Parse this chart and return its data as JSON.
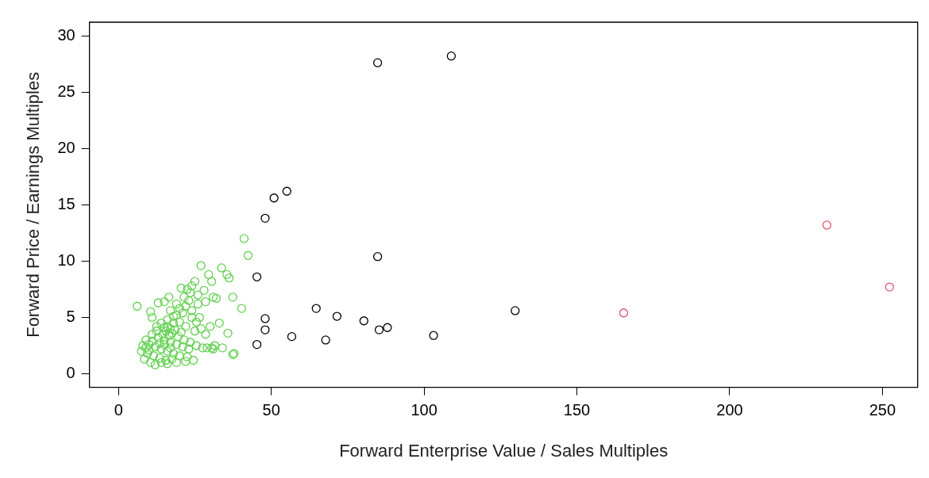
{
  "chart_data": {
    "type": "scatter",
    "xlabel": "Forward Enterprise Value / Sales Multiples",
    "ylabel": "Forward Price / Earnings Multiples",
    "xlim": [
      -9.5,
      261.5
    ],
    "ylim": [
      -1.2,
      31.2
    ],
    "xticks": [
      0,
      50,
      100,
      150,
      200,
      250
    ],
    "yticks": [
      0,
      5,
      10,
      15,
      20,
      25,
      30
    ],
    "grid": false,
    "legend": false,
    "marker": "circle",
    "series": [
      {
        "color": "#000000",
        "x": [
          84.8,
          108.9,
          55.1,
          50.9,
          48.0,
          84.8,
          45.3,
          64.7,
          71.5,
          80.3,
          48.0,
          48.0,
          56.7,
          67.8,
          85.3,
          88.0,
          45.3,
          103.1,
          129.8
        ],
        "values": [
          27.6,
          28.2,
          16.2,
          15.6,
          13.8,
          10.4,
          8.6,
          5.8,
          5.1,
          4.7,
          4.9,
          3.9,
          3.3,
          3.0,
          3.9,
          4.1,
          2.6,
          3.4,
          5.6
        ]
      },
      {
        "color": "#df536b",
        "x": [
          165.3,
          231.8,
          252.3
        ],
        "values": [
          5.4,
          13.2,
          7.7
        ]
      },
      {
        "color": "#61d04f",
        "x": [
          6.1,
          41.1,
          42.4,
          37.4,
          40.3,
          35.8,
          37.4,
          37.8,
          31.0,
          31.5,
          30.5,
          29.0,
          33.0,
          30.0,
          27.0,
          33.7,
          35.5,
          36.2,
          29.5,
          30.5,
          25.0,
          24.0,
          22.5,
          20.5,
          26.0,
          28.0,
          31.0,
          32.0,
          28.5,
          23.0,
          16.5,
          15.0,
          13.0,
          10.5,
          11.0,
          17.0,
          19.0,
          21.0,
          24.0,
          26.5,
          27.0,
          25.0,
          22.0,
          20.0,
          18.0,
          16.0,
          14.0,
          12.5,
          15.5,
          17.5,
          19.5,
          21.5,
          23.5,
          25.5,
          27.5,
          11.0,
          13.0,
          15.0,
          17.0,
          19.0,
          21.0,
          23.0,
          9.0,
          10.0,
          12.0,
          14.0,
          16.0,
          18.0,
          20.0,
          22.5,
          8.0,
          7.5,
          9.5,
          11.5,
          13.5,
          15.5,
          17.5,
          8.5,
          10.5,
          12.0,
          14.0,
          16.0,
          24.5,
          22.0,
          19.0,
          12.5,
          14.5,
          16.5,
          18.5,
          20.5,
          16.0,
          17.0,
          15.0,
          13.5,
          15.0,
          17.0,
          10.0,
          11.0,
          18.0,
          20.0,
          22.0,
          24.0,
          26.0,
          19.0,
          21.5,
          23.5,
          25.5,
          9.0,
          28.5,
          34.0
        ],
        "values": [
          6.0,
          12.0,
          10.5,
          6.8,
          5.8,
          3.6,
          1.7,
          1.8,
          2.2,
          2.5,
          2.3,
          2.3,
          4.5,
          4.2,
          9.6,
          9.4,
          8.8,
          8.5,
          8.8,
          8.2,
          8.2,
          7.8,
          7.5,
          7.6,
          7.0,
          7.4,
          6.8,
          6.7,
          6.4,
          6.5,
          6.8,
          6.4,
          6.3,
          5.5,
          5.0,
          5.6,
          5.2,
          5.4,
          5.0,
          5.0,
          4.0,
          3.8,
          4.2,
          4.6,
          4.5,
          4.8,
          4.5,
          4.2,
          3.8,
          3.6,
          3.3,
          3.0,
          2.8,
          2.5,
          2.3,
          3.5,
          3.2,
          3.0,
          2.8,
          2.6,
          2.4,
          2.2,
          3.0,
          2.6,
          2.4,
          2.2,
          2.0,
          1.8,
          1.6,
          1.5,
          2.5,
          2.0,
          1.8,
          1.6,
          1.4,
          1.2,
          1.3,
          1.3,
          1.0,
          0.8,
          1.0,
          0.9,
          1.2,
          1.1,
          1.0,
          3.8,
          3.5,
          3.4,
          3.9,
          3.7,
          4.2,
          4.0,
          4.1,
          2.7,
          2.6,
          2.3,
          2.1,
          2.9,
          5.1,
          5.8,
          6.0,
          5.6,
          6.2,
          6.2,
          6.8,
          7.2,
          4.6,
          2.3,
          3.5,
          2.3
        ]
      }
    ]
  }
}
